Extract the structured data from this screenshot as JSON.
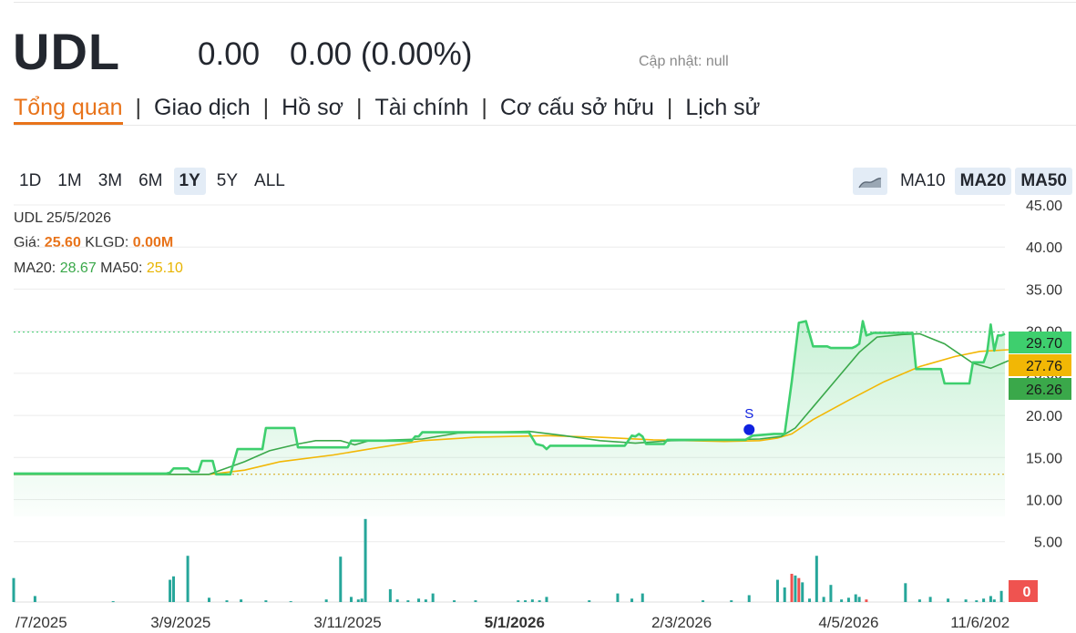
{
  "header": {
    "ticker": "UDL",
    "price": "0.00",
    "change": "0.00 (0.00%)",
    "updated": "Cập nhật: null"
  },
  "nav": {
    "tabs": [
      {
        "label": "Tổng quan",
        "active": true
      },
      {
        "label": "Giao dịch"
      },
      {
        "label": "Hồ sơ"
      },
      {
        "label": "Tài chính"
      },
      {
        "label": "Cơ cấu sở hữu"
      },
      {
        "label": "Lịch sử"
      }
    ]
  },
  "ranges": [
    "1D",
    "1M",
    "3M",
    "6M",
    "1Y",
    "5Y",
    "ALL"
  ],
  "active_range": "1Y",
  "ma_buttons": [
    {
      "label": "MA10",
      "active": false
    },
    {
      "label": "MA20",
      "active": true
    },
    {
      "label": "MA50",
      "active": true
    }
  ],
  "area_icon": "area-chart-icon",
  "info": {
    "line1": "UDL 25/5/2026",
    "price_label": "Giá: ",
    "price_value": "25.60",
    "vol_label": " KLGD: ",
    "vol_value": "0.00M",
    "ma20_label": "MA20: ",
    "ma20_value": "28.67",
    "ma50_label": " MA50: ",
    "ma50_value": "25.10"
  },
  "colors": {
    "price": "#3ecf6e",
    "ma20": "#3aa84a",
    "ma50": "#f2b705",
    "volume_up": "#26a69a",
    "volume_down": "#ef5350",
    "accent": "#e8731a"
  },
  "chart_data": {
    "type": "line",
    "y_ticks": [
      "45.00",
      "40.00",
      "35.00",
      "30.00",
      "25.00",
      "20.00",
      "15.00",
      "10.00",
      "5.00"
    ],
    "y_range": [
      8,
      45
    ],
    "x_tick_labels": [
      "/7/2025",
      "3/9/2025",
      "3/11/2025",
      "5/1/2026",
      "2/3/2026",
      "4/5/2026",
      "11/6/202"
    ],
    "x_tick_index": [
      0,
      47,
      94,
      141,
      188,
      235,
      272
    ],
    "x_count": 280,
    "price_labels": [
      "29.70",
      "27.76",
      "26.26"
    ],
    "volume_label": "0",
    "marker_label": "S",
    "marker": {
      "index": 207,
      "value": 18.3
    },
    "reference_lines": [
      29.9,
      13.0
    ],
    "series": [
      {
        "name": "Giá",
        "role": "price",
        "points": [
          [
            0,
            13.1
          ],
          [
            43,
            13.1
          ],
          [
            44,
            13.2
          ],
          [
            45,
            13.7
          ],
          [
            49,
            13.7
          ],
          [
            50,
            13.3
          ],
          [
            52,
            13.3
          ],
          [
            53,
            14.6
          ],
          [
            56,
            14.6
          ],
          [
            57,
            13.0
          ],
          [
            61,
            13.0
          ],
          [
            62,
            14.5
          ],
          [
            63,
            16.0
          ],
          [
            70,
            16.0
          ],
          [
            71,
            18.5
          ],
          [
            79,
            18.5
          ],
          [
            80,
            16.2
          ],
          [
            94,
            16.2
          ],
          [
            95,
            17.0
          ],
          [
            112,
            17.0
          ],
          [
            113,
            17.5
          ],
          [
            114,
            17.5
          ],
          [
            115,
            18.0
          ],
          [
            145,
            18.0
          ],
          [
            147,
            16.6
          ],
          [
            149,
            16.4
          ],
          [
            150,
            16.0
          ],
          [
            151,
            16.4
          ],
          [
            172,
            16.4
          ],
          [
            174,
            17.6
          ],
          [
            175,
            17.5
          ],
          [
            176,
            17.8
          ],
          [
            177,
            17.5
          ],
          [
            178,
            16.6
          ],
          [
            183,
            16.6
          ],
          [
            184,
            17.1
          ],
          [
            206,
            17.1
          ],
          [
            208,
            17.6
          ],
          [
            214,
            17.8
          ],
          [
            217,
            17.8
          ],
          [
            219,
            24.0
          ],
          [
            221,
            31.0
          ],
          [
            223,
            31.2
          ],
          [
            225,
            28.2
          ],
          [
            229,
            28.2
          ],
          [
            230,
            28.0
          ],
          [
            236,
            28.0
          ],
          [
            237,
            28.2
          ],
          [
            238,
            28.5
          ],
          [
            239,
            31.2
          ],
          [
            240,
            29.5
          ],
          [
            242,
            29.8
          ],
          [
            253,
            29.8
          ],
          [
            254,
            25.5
          ],
          [
            261,
            25.5
          ],
          [
            262,
            23.8
          ],
          [
            269,
            23.8
          ],
          [
            270,
            26.3
          ],
          [
            273,
            26.3
          ],
          [
            274,
            27.5
          ],
          [
            275,
            30.8
          ],
          [
            276,
            27.7
          ],
          [
            277,
            29.5
          ],
          [
            278,
            29.5
          ],
          [
            279,
            29.7
          ]
        ]
      },
      {
        "name": "MA20",
        "role": "ma20",
        "points": [
          [
            0,
            13.0
          ],
          [
            45,
            13.0
          ],
          [
            55,
            13.0
          ],
          [
            65,
            14.5
          ],
          [
            72,
            15.8
          ],
          [
            80,
            16.6
          ],
          [
            85,
            17.0
          ],
          [
            92,
            17.0
          ],
          [
            96,
            16.5
          ],
          [
            100,
            17.0
          ],
          [
            115,
            17.2
          ],
          [
            125,
            17.9
          ],
          [
            145,
            18.1
          ],
          [
            155,
            17.6
          ],
          [
            165,
            17.0
          ],
          [
            175,
            16.7
          ],
          [
            185,
            17.0
          ],
          [
            200,
            17.1
          ],
          [
            210,
            17.2
          ],
          [
            216,
            17.5
          ],
          [
            220,
            18.5
          ],
          [
            225,
            21.0
          ],
          [
            232,
            24.5
          ],
          [
            238,
            27.5
          ],
          [
            243,
            29.3
          ],
          [
            250,
            29.6
          ],
          [
            255,
            29.7
          ],
          [
            262,
            28.5
          ],
          [
            270,
            26.2
          ],
          [
            275,
            25.6
          ],
          [
            280,
            26.5
          ]
        ]
      },
      {
        "name": "MA50",
        "role": "ma50",
        "points": [
          [
            0,
            13.0
          ],
          [
            55,
            13.0
          ],
          [
            65,
            13.5
          ],
          [
            75,
            14.5
          ],
          [
            90,
            15.3
          ],
          [
            100,
            16.0
          ],
          [
            115,
            17.0
          ],
          [
            130,
            17.4
          ],
          [
            150,
            17.6
          ],
          [
            165,
            17.4
          ],
          [
            180,
            17.1
          ],
          [
            200,
            16.9
          ],
          [
            210,
            17.0
          ],
          [
            215,
            17.3
          ],
          [
            219,
            17.8
          ],
          [
            225,
            19.5
          ],
          [
            235,
            21.8
          ],
          [
            245,
            24.0
          ],
          [
            255,
            25.8
          ],
          [
            265,
            27.0
          ],
          [
            272,
            27.6
          ],
          [
            280,
            27.8
          ]
        ]
      }
    ],
    "volume_range": [
      0,
      10
    ],
    "volume": [
      [
        0,
        2.8
      ],
      [
        6,
        0.7
      ],
      [
        28,
        0.1
      ],
      [
        44,
        2.6
      ],
      [
        45,
        3.0
      ],
      [
        49,
        5.4
      ],
      [
        55,
        0.5
      ],
      [
        60,
        0.2
      ],
      [
        64,
        0.3
      ],
      [
        71,
        0.2
      ],
      [
        78,
        0.1
      ],
      [
        88,
        0.3
      ],
      [
        92,
        5.3
      ],
      [
        95,
        0.6
      ],
      [
        97,
        0.3
      ],
      [
        98,
        0.4
      ],
      [
        99,
        9.7
      ],
      [
        106,
        1.5
      ],
      [
        108,
        0.3
      ],
      [
        111,
        0.2
      ],
      [
        114,
        0.4
      ],
      [
        116,
        0.3
      ],
      [
        118,
        1.0
      ],
      [
        124,
        0.2
      ],
      [
        130,
        0.2
      ],
      [
        142,
        0.2
      ],
      [
        144,
        0.2
      ],
      [
        146,
        0.3
      ],
      [
        148,
        0.2
      ],
      [
        150,
        0.6
      ],
      [
        162,
        0.2
      ],
      [
        170,
        1.0
      ],
      [
        174,
        0.4
      ],
      [
        177,
        1.0
      ],
      [
        194,
        0.2
      ],
      [
        202,
        0.2
      ],
      [
        207,
        0.8
      ],
      [
        215,
        2.6
      ],
      [
        217,
        1.7
      ],
      [
        219,
        3.3
      ],
      [
        220,
        3.1
      ],
      [
        221,
        2.8
      ],
      [
        222,
        2.3
      ],
      [
        224,
        0.4
      ],
      [
        226,
        5.4
      ],
      [
        228,
        0.6
      ],
      [
        230,
        2.0
      ],
      [
        233,
        0.3
      ],
      [
        235,
        0.5
      ],
      [
        237,
        0.9
      ],
      [
        238,
        0.6
      ],
      [
        240,
        0.3
      ],
      [
        251,
        2.2
      ],
      [
        255,
        0.3
      ],
      [
        258,
        0.6
      ],
      [
        263,
        0.4
      ],
      [
        268,
        0.3
      ],
      [
        271,
        0.2
      ],
      [
        273,
        0.4
      ],
      [
        275,
        0.7
      ],
      [
        276,
        0.3
      ],
      [
        278,
        1.3
      ]
    ],
    "volume_down_index": [
      96,
      107,
      219,
      221,
      240
    ]
  }
}
